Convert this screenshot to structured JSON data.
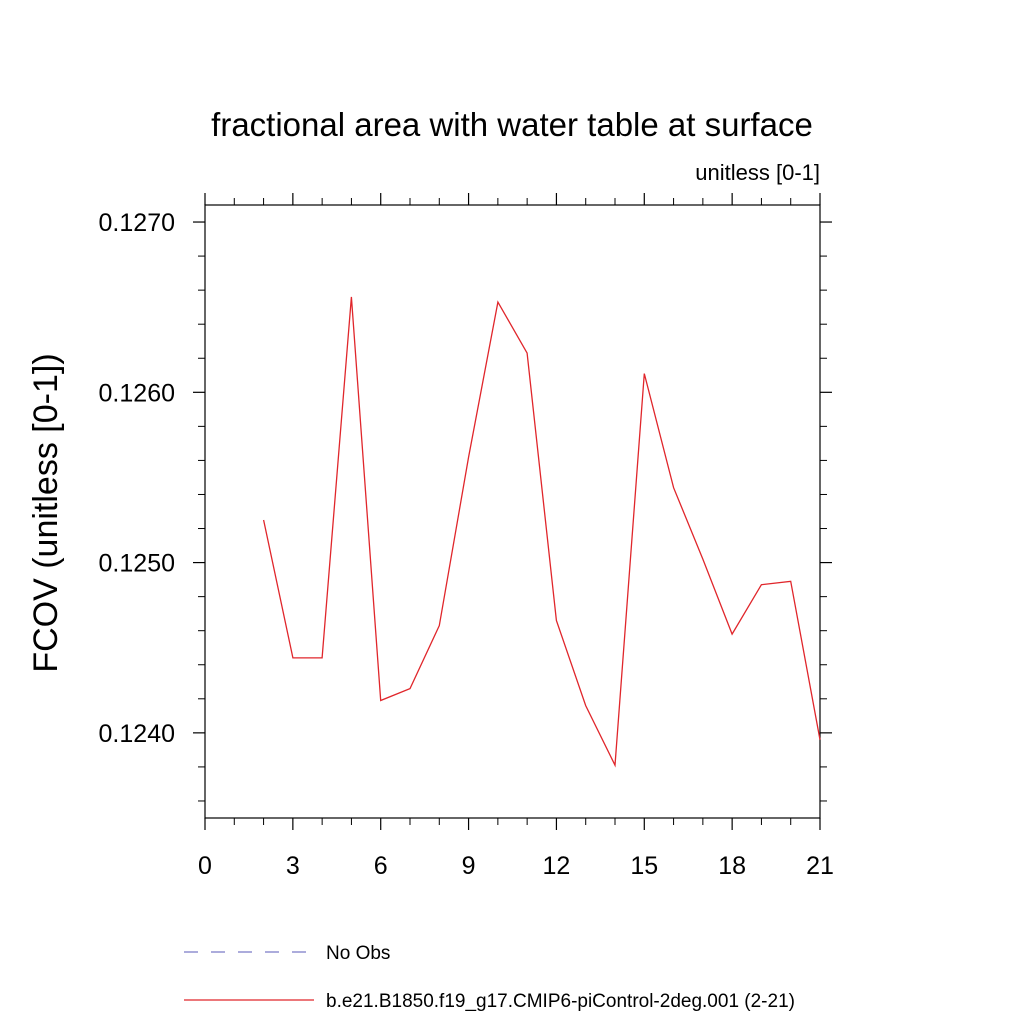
{
  "chart_data": {
    "type": "line",
    "title": "fractional area with water table at surface",
    "units_label": "unitless [0-1]",
    "ylabel": "FCOV  (unitless [0-1])",
    "xlabel": "",
    "xlim": [
      0,
      21
    ],
    "ylim": [
      0.1235,
      0.1271
    ],
    "x_ticks": [
      {
        "value": 0,
        "label": "0"
      },
      {
        "value": 3,
        "label": "3"
      },
      {
        "value": 6,
        "label": "6"
      },
      {
        "value": 9,
        "label": "9"
      },
      {
        "value": 12,
        "label": "12"
      },
      {
        "value": 15,
        "label": "15"
      },
      {
        "value": 18,
        "label": "18"
      },
      {
        "value": 21,
        "label": "21"
      }
    ],
    "y_ticks": [
      {
        "value": 0.124,
        "label": "0.1240"
      },
      {
        "value": 0.125,
        "label": "0.1250"
      },
      {
        "value": 0.126,
        "label": "0.1260"
      },
      {
        "value": 0.127,
        "label": "0.1270"
      }
    ],
    "x_minor_step": 1,
    "y_minor_step": 0.0002,
    "grid": false,
    "legend_position": "bottom",
    "legend": [
      {
        "label": "No Obs",
        "color": "#7b7bc8",
        "style": "dashed"
      },
      {
        "label": "b.e21.B1850.f19_g17.CMIP6-piControl-2deg.001 (2-21)",
        "color": "#e0262b",
        "style": "solid"
      }
    ],
    "series": [
      {
        "name": "b.e21.B1850.f19_g17.CMIP6-piControl-2deg.001 (2-21)",
        "color": "#e0262b",
        "x": [
          2,
          3,
          4,
          5,
          6,
          7,
          8,
          9,
          10,
          11,
          12,
          13,
          14,
          15,
          16,
          17,
          18,
          19,
          20,
          21
        ],
        "y": [
          0.12525,
          0.12444,
          0.12444,
          0.12656,
          0.12419,
          0.12426,
          0.12463,
          0.12562,
          0.12653,
          0.12623,
          0.12466,
          0.12416,
          0.12381,
          0.12611,
          0.12544,
          0.12502,
          0.12458,
          0.12487,
          0.12489,
          0.12396
        ]
      }
    ]
  }
}
